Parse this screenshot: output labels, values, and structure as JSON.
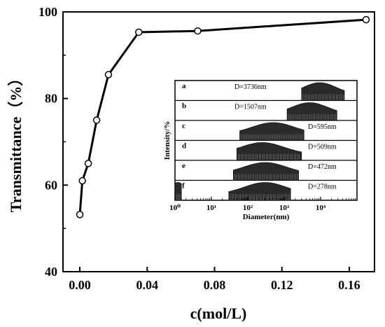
{
  "chart_data": [
    {
      "type": "line",
      "xlabel": "c(mol/L)",
      "ylabel": "Transmittance（%）",
      "xlim": [
        -0.01,
        0.175
      ],
      "ylim": [
        40,
        100
      ],
      "x_ticks": [
        0.0,
        0.04,
        0.08,
        0.12,
        0.16
      ],
      "x_tick_labels": [
        "0.00",
        "0.04",
        "0.08",
        "0.12",
        "0.16"
      ],
      "y_ticks": [
        40,
        60,
        80,
        100
      ],
      "y_tick_labels": [
        "40",
        "60",
        "80",
        "100"
      ],
      "series": [
        {
          "x": [
            0.0,
            0.0015,
            0.005,
            0.01,
            0.017,
            0.035,
            0.07,
            0.17
          ],
          "y": [
            53.2,
            61,
            65,
            75,
            85.5,
            95.3,
            95.6,
            98.2
          ],
          "marker": "open-circle",
          "color": "#000000"
        }
      ],
      "grid": false
    },
    {
      "type": "bar",
      "name": "inset",
      "xlabel": "Diameter(nm)",
      "ylabel": "Intensity/%",
      "x_scale": "log",
      "xlim": [
        1,
        100000
      ],
      "x_tick_labels": [
        "10⁰",
        "10¹",
        "10²",
        "10³",
        "10⁴"
      ],
      "panels": [
        {
          "label": "a",
          "annotation": "D=3736nm",
          "ranges": [
            {
              "from": 3000,
              "to": 45000,
              "peak": 9500
            }
          ]
        },
        {
          "label": "b",
          "annotation": "D=1507nm",
          "ranges": [
            {
              "from": 1200,
              "to": 28000,
              "peak": 5000
            }
          ]
        },
        {
          "label": "c",
          "annotation": "D=595nm",
          "ranges": [
            {
              "from": 60,
              "to": 3500,
              "peak": 500
            }
          ]
        },
        {
          "label": "d",
          "annotation": "D=509nm",
          "ranges": [
            {
              "from": 50,
              "to": 3000,
              "peak": 250
            }
          ]
        },
        {
          "label": "e",
          "annotation": "D=472nm",
          "ranges": [
            {
              "from": 40,
              "to": 2500,
              "peak": 300
            }
          ]
        },
        {
          "label": "f",
          "annotation": "D=278nm",
          "ranges": [
            {
              "from": 1,
              "to": 1.5,
              "peak": 1.2
            },
            {
              "from": 30,
              "to": 1500,
              "peak": 300
            }
          ]
        }
      ]
    }
  ]
}
